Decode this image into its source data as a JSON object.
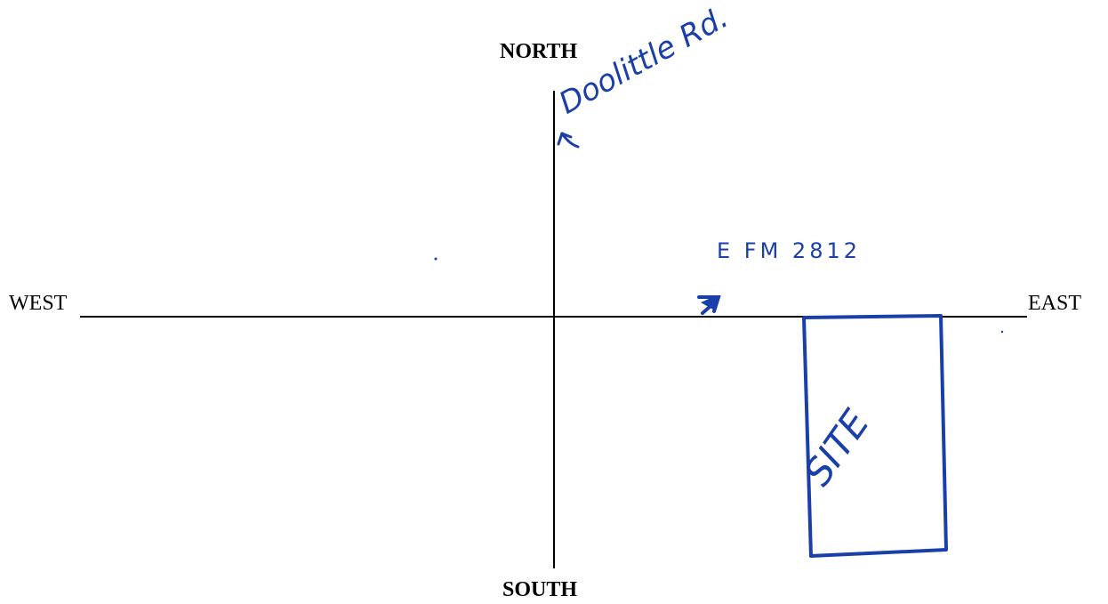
{
  "compass": {
    "north": "NORTH",
    "south": "SOUTH",
    "west": "WEST",
    "east": "EAST"
  },
  "annotations": {
    "road_north": "Doolittle Rd.",
    "road_east": "E FM 2812",
    "site": "SITE"
  },
  "colors": {
    "ink": "#000000",
    "pen": "#1a3fa8"
  }
}
